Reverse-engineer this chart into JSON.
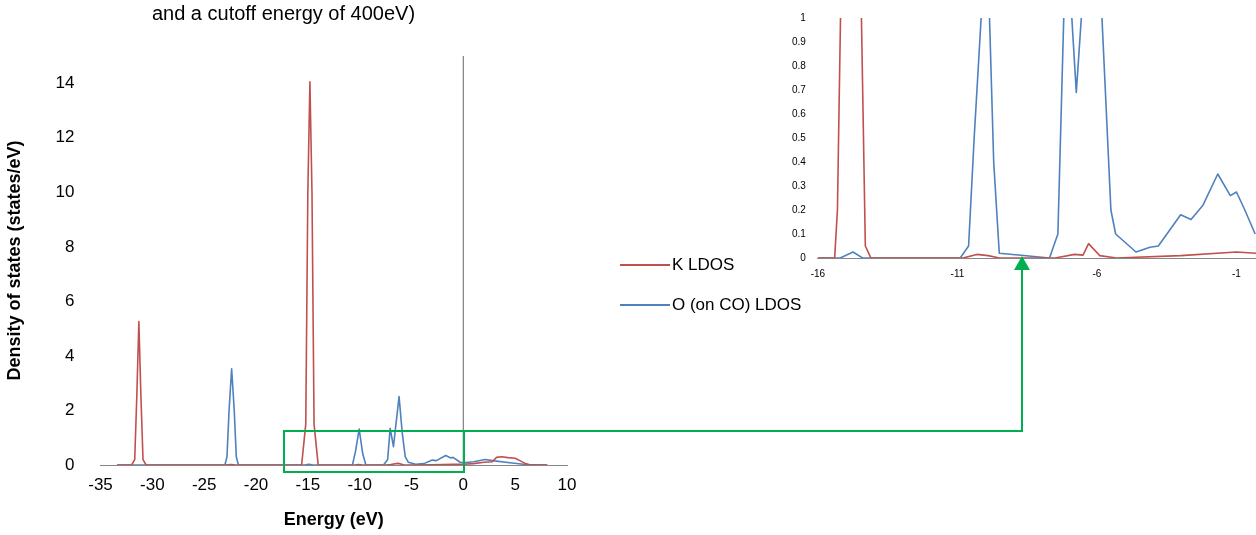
{
  "chart_data": [
    {
      "type": "line",
      "title": "and a cutoff energy of 400eV)",
      "xlabel": "Energy (eV)",
      "ylabel": "Density of states (states/eV)",
      "xlim": [
        -35,
        10
      ],
      "xticks": [
        -35,
        -30,
        -25,
        -20,
        -15,
        -10,
        -5,
        0,
        5,
        10
      ],
      "ylim": [
        0,
        15
      ],
      "yticks": [
        0,
        2,
        4,
        6,
        8,
        10,
        12,
        14
      ],
      "legend": "right",
      "marker": "none",
      "ref_lines": [
        {
          "axis": "x",
          "value": 0,
          "color": "#808080"
        }
      ],
      "series": [
        {
          "name": "K LDOS",
          "color": "#c0504d",
          "x": [
            -33.4,
            -32,
            -31.7,
            -31.5,
            -31.3,
            -31.1,
            -30.9,
            -30.6,
            -23,
            -22.4,
            -21.9,
            -15.6,
            -15.2,
            -15.0,
            -14.8,
            -14.6,
            -14.4,
            -14.0,
            -10.5,
            -10.1,
            -9.7,
            -7.5,
            -7.0,
            -6.3,
            -5.7,
            -3,
            -1,
            0,
            1,
            2,
            2.8,
            3.2,
            3.7,
            4.3,
            5,
            5.5,
            6.0,
            6.5,
            8.1
          ],
          "values": [
            0,
            0,
            0.2,
            2.5,
            5.26,
            2.5,
            0.2,
            0,
            0,
            0.02,
            0,
            0,
            1.5,
            10,
            14.05,
            10,
            1.5,
            0,
            0,
            0.02,
            0,
            0,
            0.02,
            0.06,
            0,
            0.01,
            0.03,
            0.03,
            0.05,
            0.1,
            0.12,
            0.28,
            0.3,
            0.27,
            0.25,
            0.15,
            0.05,
            0,
            0
          ]
        },
        {
          "name": "O (on CO) LDOS",
          "color": "#4f81bd",
          "x": [
            -33.4,
            -23,
            -22.8,
            -22.6,
            -22.35,
            -22.1,
            -21.9,
            -21.7,
            -15.3,
            -14.9,
            -14.5,
            -10.7,
            -10.4,
            -10.05,
            -9.7,
            -9.4,
            -7.7,
            -7.3,
            -7.06,
            -6.74,
            -6.5,
            -6.2,
            -5.9,
            -5.6,
            -5.3,
            -4.6,
            -3.8,
            -3.0,
            -2.6,
            -1.7,
            -1.2,
            -1.0,
            -0.3,
            0,
            1,
            2.1,
            3,
            4.5,
            6,
            8.1
          ],
          "values": [
            0,
            0,
            0.3,
            2.0,
            3.53,
            2.0,
            0.3,
            0,
            0,
            0.03,
            0,
            0,
            0.5,
            1.32,
            0.4,
            0,
            0,
            0.2,
            1.35,
            0.67,
            1.5,
            2.51,
            1.2,
            0.3,
            0.1,
            0.03,
            0.05,
            0.18,
            0.16,
            0.35,
            0.26,
            0.28,
            0.1,
            0.08,
            0.12,
            0.2,
            0.15,
            0.08,
            0.02,
            0
          ]
        }
      ]
    },
    {
      "type": "line",
      "xlim": [
        -16,
        -0.3
      ],
      "xticks": [
        -16,
        -11,
        -6,
        -1
      ],
      "ylim": [
        0,
        1
      ],
      "yticks": [
        0,
        0.1,
        0.2,
        0.3,
        0.4,
        0.5,
        0.6,
        0.7,
        0.8,
        0.9,
        1
      ],
      "marker": "none",
      "series": [
        {
          "color": "#c0504d",
          "x": [
            -16,
            -15.4,
            -15.3,
            -15.19,
            -14.8,
            -14.44,
            -14.3,
            -14.1,
            -10.8,
            -10.3,
            -9.9,
            -9.5,
            -7.5,
            -6.8,
            -6.5,
            -6.3,
            -5.9,
            -5.3,
            -3,
            -1,
            -0.3
          ],
          "values": [
            0,
            0,
            0.2,
            1,
            null,
            1,
            0.05,
            0,
            0,
            0.015,
            0.01,
            0,
            0,
            0.015,
            0.012,
            0.06,
            0.01,
            0,
            0.01,
            0.025,
            0.02
          ]
        },
        {
          "color": "#4f81bd",
          "x": [
            -16,
            -15.2,
            -14.74,
            -14.4,
            -10.9,
            -10.6,
            -10.4,
            -10.15,
            -9.95,
            -9.85,
            -9.7,
            -9.5,
            -7.7,
            -7.4,
            -7.19,
            -7.0,
            -6.9,
            -6.74,
            -6.56,
            -6.3,
            -5.82,
            -5.5,
            -5.33,
            -4.6,
            -4.1,
            -3.8,
            -3.0,
            -2.63,
            -2.2,
            -1.67,
            -1.22,
            -1.0,
            -0.7,
            -0.33
          ],
          "values": [
            0,
            0,
            0.025,
            0,
            0,
            0.05,
            0.5,
            1,
            null,
            1,
            0.4,
            0.02,
            0,
            0.1,
            1,
            null,
            1,
            0.69,
            1,
            null,
            1,
            0.2,
            0.1,
            0.025,
            0.045,
            0.05,
            0.18,
            0.16,
            0.22,
            0.35,
            0.26,
            0.275,
            0.2,
            0.1
          ]
        }
      ]
    }
  ]
}
